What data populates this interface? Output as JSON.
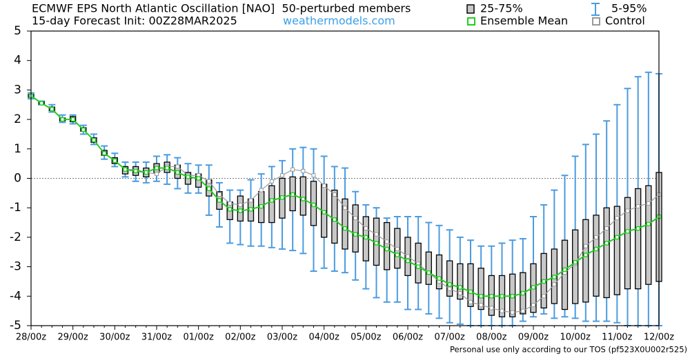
{
  "chart_data": {
    "type": "boxplot",
    "title": "ECMWF EPS North Atlantic Oscillation [NAO]  50-perturbed members",
    "subtitle": "15-day Forecast Init: 00Z28MAR2025",
    "source": "weathermodels.com",
    "footer": "Personal use only according to our TOS (pf523X0U002r525)",
    "categories": [
      "28/00z",
      null,
      null,
      null,
      "29/00z",
      null,
      null,
      null,
      "30/00z",
      null,
      null,
      null,
      "31/00z",
      null,
      null,
      null,
      "01/00z",
      null,
      null,
      null,
      "02/00z",
      null,
      null,
      null,
      "03/00z",
      null,
      null,
      null,
      "04/00z",
      null,
      null,
      null,
      "05/00z",
      null,
      null,
      null,
      "06/00z",
      null,
      null,
      null,
      "07/00z",
      null,
      null,
      null,
      "08/00z",
      null,
      null,
      null,
      "09/00z",
      null,
      null,
      null,
      "10/00z",
      null,
      null,
      null,
      "11/00z",
      null,
      null,
      null,
      "12/00z"
    ],
    "ylim": [
      -5,
      5
    ],
    "yticks": [
      -5,
      -4,
      -3,
      -2,
      -1,
      0,
      1,
      2,
      3,
      4,
      5
    ],
    "zero_line": true,
    "boxes": {
      "name": "25-75%",
      "color": "#c8c8c8",
      "low": [
        2.75,
        2.52,
        2.3,
        1.95,
        1.92,
        1.6,
        1.22,
        0.78,
        0.5,
        0.15,
        0.1,
        0.05,
        0.2,
        0.2,
        0.0,
        -0.2,
        -0.3,
        -0.6,
        -1.05,
        -1.4,
        -1.45,
        -1.45,
        -1.5,
        -1.5,
        -1.35,
        -1.1,
        -1.25,
        -1.6,
        -2.0,
        -2.2,
        -2.4,
        -2.5,
        -2.8,
        -2.95,
        -3.1,
        -3.05,
        -3.3,
        -3.55,
        -3.6,
        -3.75,
        -4.0,
        -4.1,
        -4.35,
        -4.45,
        -4.65,
        -4.7,
        -4.7,
        -4.6,
        -4.55,
        -4.4,
        -4.25,
        -4.45,
        -4.25,
        -4.2,
        -4.0,
        -4.05,
        -3.95,
        -3.75,
        -3.75,
        -3.6,
        -3.5
      ],
      "high": [
        2.85,
        2.6,
        2.42,
        2.05,
        2.1,
        1.72,
        1.38,
        0.95,
        0.7,
        0.4,
        0.4,
        0.35,
        0.5,
        0.55,
        0.45,
        0.2,
        0.15,
        -0.05,
        -0.45,
        -0.8,
        -0.6,
        -0.7,
        -0.45,
        -0.25,
        0.0,
        0.05,
        0.05,
        -0.1,
        -0.2,
        -0.4,
        -0.7,
        -0.9,
        -1.3,
        -1.35,
        -1.5,
        -1.7,
        -2.0,
        -2.2,
        -2.5,
        -2.6,
        -2.8,
        -2.9,
        -2.9,
        -3.05,
        -3.3,
        -3.3,
        -3.25,
        -3.2,
        -2.9,
        -2.55,
        -2.4,
        -2.1,
        -1.75,
        -1.4,
        -1.25,
        -1.0,
        -0.95,
        -0.65,
        -0.35,
        -0.25,
        0.2
      ]
    },
    "whiskers": {
      "name": "5-95%",
      "color": "#4a9be0",
      "low": [
        2.7,
        2.5,
        2.25,
        1.9,
        1.85,
        1.5,
        1.15,
        0.65,
        0.4,
        0.05,
        -0.1,
        -0.15,
        -0.1,
        -0.2,
        -0.35,
        -0.5,
        -0.5,
        -1.25,
        -1.65,
        -2.2,
        -2.25,
        -2.3,
        -2.3,
        -2.35,
        -2.4,
        -2.45,
        -2.55,
        -3.15,
        -3.05,
        -3.15,
        -3.2,
        -3.45,
        -3.75,
        -4.05,
        -4.2,
        -4.2,
        -4.45,
        -4.45,
        -4.6,
        -4.75,
        -4.9,
        -4.95,
        -5,
        -5,
        -5,
        -5,
        -5,
        -4.85,
        -4.7,
        -4.6,
        -4.75,
        -4.7,
        -4.75,
        -4.85,
        -4.85,
        -4.85,
        -4.9,
        -5,
        -5,
        -5,
        -5
      ],
      "high": [
        2.9,
        2.62,
        2.5,
        2.15,
        2.15,
        1.8,
        1.5,
        1.1,
        0.85,
        0.55,
        0.55,
        0.55,
        0.75,
        0.8,
        0.7,
        0.5,
        0.45,
        0.45,
        -0.15,
        -0.4,
        -0.4,
        -0.05,
        0.15,
        0.4,
        0.6,
        1.0,
        1.05,
        1.0,
        0.75,
        0.4,
        0.35,
        -0.45,
        -0.9,
        -1.0,
        -1.35,
        -1.3,
        -1.3,
        -1.3,
        -1.5,
        -1.6,
        -1.75,
        -2.0,
        -2.1,
        -2.3,
        -2.3,
        -2.2,
        -2.1,
        -2.05,
        -1.3,
        -0.9,
        -0.4,
        0.1,
        0.75,
        1.15,
        1.5,
        1.95,
        2.5,
        3.05,
        3.45,
        3.6,
        3.55
      ]
    },
    "series": [
      {
        "name": "Control",
        "color": "#999999",
        "values": [
          2.8,
          2.55,
          2.35,
          2.0,
          2.0,
          1.65,
          1.3,
          0.85,
          0.6,
          0.3,
          0.3,
          0.2,
          0.15,
          0.4,
          0.4,
          0.1,
          0.1,
          -0.1,
          -0.55,
          -0.85,
          -0.9,
          -0.75,
          -0.4,
          -0.1,
          0.1,
          0.3,
          0.25,
          0.1,
          -0.25,
          -0.55,
          -1.0,
          -1.35,
          -1.7,
          -1.9,
          -2.15,
          -2.4,
          -2.65,
          -2.9,
          -3.2,
          -3.5,
          -3.75,
          -3.9,
          -4.2,
          -4.3,
          -4.4,
          -4.5,
          -4.55,
          -4.5,
          -4.3,
          -4.0,
          -3.6,
          -3.2,
          -2.9,
          -2.3,
          -2.0,
          -1.7,
          -1.35,
          -1.1,
          -0.95,
          -0.85,
          -0.55
        ]
      },
      {
        "name": "Ensemble Mean",
        "color": "#22cc22",
        "values": [
          2.8,
          2.55,
          2.35,
          2.0,
          2.0,
          1.65,
          1.3,
          0.85,
          0.6,
          0.3,
          0.25,
          0.2,
          0.35,
          0.35,
          0.2,
          0.05,
          0.0,
          -0.35,
          -0.75,
          -1.05,
          -1.1,
          -1.05,
          -0.95,
          -0.75,
          -0.65,
          -0.55,
          -0.7,
          -0.9,
          -1.15,
          -1.4,
          -1.7,
          -1.9,
          -2.0,
          -2.2,
          -2.4,
          -2.6,
          -2.8,
          -3.0,
          -3.2,
          -3.4,
          -3.6,
          -3.7,
          -3.85,
          -4.0,
          -4.0,
          -4.0,
          -4.0,
          -3.9,
          -3.7,
          -3.5,
          -3.35,
          -3.1,
          -2.85,
          -2.6,
          -2.4,
          -2.2,
          -2.0,
          -1.8,
          -1.7,
          -1.55,
          -1.3
        ]
      }
    ]
  }
}
